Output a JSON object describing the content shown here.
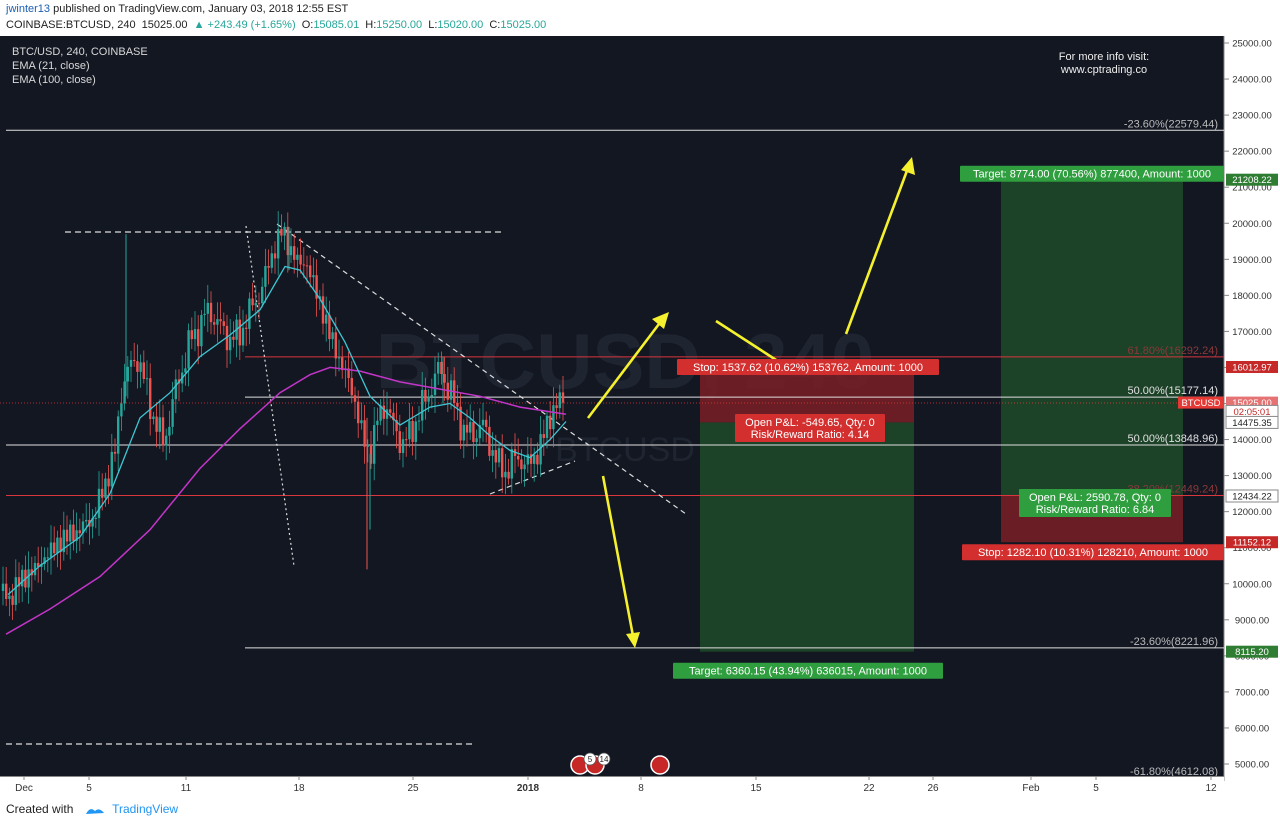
{
  "header": {
    "author": "jwinter13",
    "published": "published on TradingView.com, January 03, 2018 12:55 EST",
    "symbol": "COINBASE:BTCUSD, 240",
    "price": "15025.00",
    "change": "▲ +243.49 (+1.65%)",
    "o_label": "O:",
    "o": "15085.01",
    "h_label": "H:",
    "h": "15250.00",
    "l_label": "L:",
    "l": "15020.00",
    "c_label": "C:",
    "c": "15025.00"
  },
  "legend": {
    "line1": "BTC/USD, 240, COINBASE",
    "line2": "EMA (21, close)",
    "line3": "EMA (100, close)"
  },
  "watermark": {
    "main": "BTCUSD, 240",
    "sub": "BTCUSD"
  },
  "info_note": {
    "line1": "For more info visit:",
    "line2": "www.cptrading.co"
  },
  "footer": {
    "created": "Created with",
    "brand": "TradingView"
  },
  "colors": {
    "background": "#131722",
    "candle_up": "#26a69a",
    "candle_down": "#ef5350",
    "ema21": "#3fc6d3",
    "ema100": "#c335c9",
    "annotation_arrow": "#f5f12e",
    "stop_zone": "#7a1f24",
    "target_zone": "#1e4a29"
  },
  "chart_data": {
    "type": "candlestick",
    "title": "BTC/USD, 240, COINBASE",
    "x_ticks": [
      "Dec",
      "5",
      "11",
      "18",
      "25",
      "2018",
      "8",
      "15",
      "22",
      "26",
      "Feb",
      "5",
      "12"
    ],
    "y_ticks": [
      5000,
      6000,
      7000,
      8000,
      9000,
      10000,
      11000,
      12000,
      13000,
      14000,
      15000,
      16000,
      17000,
      18000,
      19000,
      20000,
      21000,
      22000,
      23000,
      24000,
      25000
    ],
    "y_tick_labels": [
      "5000.00",
      "6000.00",
      "7000.00",
      "8000.00",
      "9000.00",
      "10000.00",
      "11000.00",
      "12000.00",
      "13000.00",
      "14000.00",
      "15000.00",
      "16000.00",
      "17000.00",
      "18000.00",
      "19000.00",
      "20000.00",
      "21000.00",
      "22000.00",
      "23000.00",
      "24000.00",
      "25000.00"
    ],
    "ylim": [
      4700,
      25150
    ],
    "price_path": [
      [
        0,
        9800
      ],
      [
        10,
        9600
      ],
      [
        20,
        10100
      ],
      [
        35,
        10400
      ],
      [
        50,
        10900
      ],
      [
        65,
        11300
      ],
      [
        80,
        11500
      ],
      [
        95,
        11900
      ],
      [
        105,
        12800
      ],
      [
        115,
        13600
      ],
      [
        122,
        15500
      ],
      [
        130,
        16000
      ],
      [
        138,
        16300
      ],
      [
        146,
        15400
      ],
      [
        155,
        14500
      ],
      [
        163,
        13900
      ],
      [
        172,
        14900
      ],
      [
        180,
        15800
      ],
      [
        190,
        16700
      ],
      [
        200,
        17200
      ],
      [
        210,
        17600
      ],
      [
        220,
        17100
      ],
      [
        230,
        16800
      ],
      [
        240,
        16900
      ],
      [
        250,
        17600
      ],
      [
        258,
        17900
      ],
      [
        266,
        18600
      ],
      [
        274,
        19300
      ],
      [
        282,
        19800
      ],
      [
        290,
        19300
      ],
      [
        298,
        18900
      ],
      [
        306,
        18900
      ],
      [
        314,
        18300
      ],
      [
        322,
        17600
      ],
      [
        330,
        16900
      ],
      [
        338,
        16300
      ],
      [
        346,
        15800
      ],
      [
        354,
        15200
      ],
      [
        362,
        14100
      ],
      [
        370,
        13600
      ],
      [
        378,
        14600
      ],
      [
        386,
        15000
      ],
      [
        394,
        14300
      ],
      [
        402,
        13900
      ],
      [
        410,
        14100
      ],
      [
        418,
        14700
      ],
      [
        426,
        15100
      ],
      [
        434,
        15700
      ],
      [
        442,
        15900
      ],
      [
        450,
        15300
      ],
      [
        458,
        14700
      ],
      [
        466,
        14100
      ],
      [
        474,
        14200
      ],
      [
        482,
        14400
      ],
      [
        490,
        13900
      ],
      [
        498,
        13300
      ],
      [
        506,
        13100
      ],
      [
        514,
        13500
      ],
      [
        522,
        13400
      ],
      [
        530,
        13300
      ],
      [
        538,
        13700
      ],
      [
        546,
        14300
      ],
      [
        554,
        14900
      ],
      [
        560,
        15100
      ],
      [
        566,
        15025
      ]
    ],
    "ema21_path": [
      [
        8,
        9700
      ],
      [
        40,
        10500
      ],
      [
        80,
        11300
      ],
      [
        110,
        12500
      ],
      [
        140,
        14600
      ],
      [
        170,
        15300
      ],
      [
        200,
        16300
      ],
      [
        230,
        16900
      ],
      [
        260,
        17600
      ],
      [
        285,
        18800
      ],
      [
        300,
        18700
      ],
      [
        320,
        17900
      ],
      [
        345,
        16700
      ],
      [
        370,
        15200
      ],
      [
        400,
        14400
      ],
      [
        430,
        14900
      ],
      [
        450,
        15000
      ],
      [
        470,
        14600
      ],
      [
        490,
        14100
      ],
      [
        510,
        13700
      ],
      [
        530,
        13500
      ],
      [
        550,
        14000
      ],
      [
        566,
        14500
      ]
    ],
    "ema100_path": [
      [
        6,
        8600
      ],
      [
        50,
        9300
      ],
      [
        100,
        10200
      ],
      [
        150,
        11500
      ],
      [
        200,
        13200
      ],
      [
        240,
        14300
      ],
      [
        280,
        15300
      ],
      [
        310,
        15800
      ],
      [
        330,
        16000
      ],
      [
        360,
        15900
      ],
      [
        400,
        15600
      ],
      [
        440,
        15400
      ],
      [
        480,
        15200
      ],
      [
        520,
        14900
      ],
      [
        566,
        14700
      ]
    ],
    "fib_lines": [
      {
        "label": "-23.60%(22579.44)",
        "value": 22579.44
      },
      {
        "label": "61.80%(16292.24)",
        "value": 16292.24
      },
      {
        "label": "50.00%(15177.14)",
        "value": 15177.14
      },
      {
        "label": "50.00%(13848.96)",
        "value": 13848.96
      },
      {
        "label": "38.20%(12449.24)",
        "value": 12449.24
      },
      {
        "label": "-23.60%(8221.96)",
        "value": 8221.96
      },
      {
        "label": "-61.80%(4612.08)",
        "value": 4612.08
      }
    ],
    "price_labels": [
      {
        "text": "21208.22",
        "value": 21208.22,
        "color": "#2e7d32"
      },
      {
        "text": "16012.97",
        "value": 16012.97,
        "color": "#c62828"
      },
      {
        "text": "BTCUSD",
        "value": 15025.0,
        "color": "#e53935"
      },
      {
        "text": "15025.00",
        "value": 15025.0,
        "color": "#ffffff"
      },
      {
        "text": "02:05:01",
        "value": 14780.0,
        "color": "#c62828"
      },
      {
        "text": "14475.35",
        "value": 14475.35,
        "color": "#555555"
      },
      {
        "text": "12434.22",
        "value": 12434.22,
        "color": "#555555"
      },
      {
        "text": "11152.12",
        "value": 11152.12,
        "color": "#c62828"
      },
      {
        "text": "8115.20",
        "value": 8115.2,
        "color": "#2e7d32"
      }
    ],
    "short_position": {
      "stop": "Stop: 1537.62 (10.62%) 153762, Amount: 1000",
      "pnl": "Open P&L: -549.65, Qty: 0",
      "rr": "Risk/Reward Ratio: 4.14",
      "target": "Target: 6360.15 (43.94%) 636015, Amount: 1000",
      "stop_level": 16012.97,
      "entry_level": 14475.35,
      "target_level": 8115.2
    },
    "long_position": {
      "target": "Target: 8774.00 (70.56%) 877400, Amount: 1000",
      "pnl": "Open P&L: 2590.78, Qty: 0",
      "rr": "Risk/Reward Ratio: 6.84",
      "stop": "Stop: 1282.10 (10.31%) 128210, Amount: 1000",
      "target_level": 21208.22,
      "entry_level": 12434.22,
      "stop_level": 11152.12
    },
    "events": [
      "5",
      "14"
    ]
  }
}
